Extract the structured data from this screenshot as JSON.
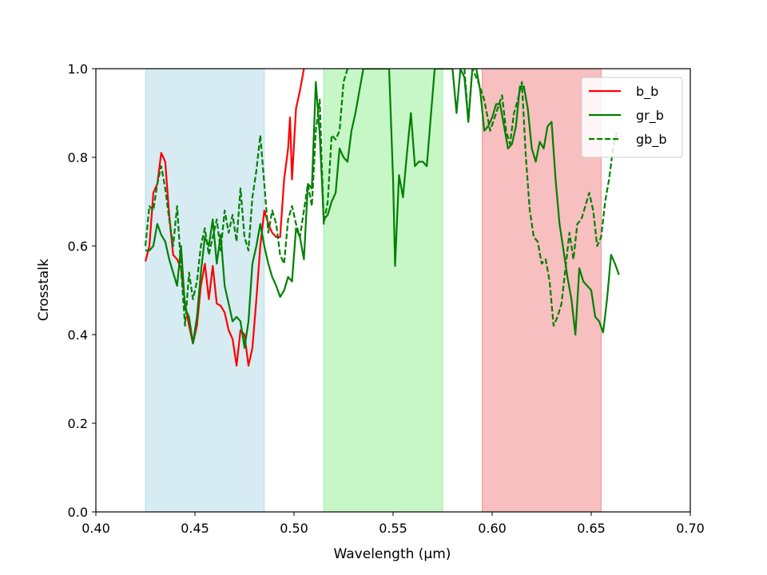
{
  "chart_data": {
    "type": "line",
    "title": "",
    "xlabel": "Wavelength (µm)",
    "ylabel": "Crosstalk",
    "xlim": [
      0.4,
      0.7
    ],
    "ylim": [
      0.0,
      1.0
    ],
    "xticks": [
      "0.40",
      "0.45",
      "0.50",
      "0.55",
      "0.60",
      "0.65",
      "0.70"
    ],
    "xtick_values": [
      0.4,
      0.45,
      0.5,
      0.55,
      0.6,
      0.65,
      0.7
    ],
    "yticks": [
      "0.0",
      "0.2",
      "0.4",
      "0.6",
      "0.8",
      "1.0"
    ],
    "ytick_values": [
      0.0,
      0.2,
      0.4,
      0.6,
      0.8,
      1.0
    ],
    "grid": false,
    "legend_position": "top-right",
    "bands": [
      {
        "x0": 0.425,
        "x1": 0.485,
        "color": "#add8e6"
      },
      {
        "x0": 0.515,
        "x1": 0.575,
        "color": "#90ee90"
      },
      {
        "x0": 0.595,
        "x1": 0.655,
        "color": "#f08080"
      }
    ],
    "series": [
      {
        "name": "b_b",
        "color": "#ff0000",
        "dash": "solid",
        "points": [
          [
            0.425,
            0.565
          ],
          [
            0.427,
            0.6
          ],
          [
            0.429,
            0.72
          ],
          [
            0.431,
            0.74
          ],
          [
            0.433,
            0.81
          ],
          [
            0.435,
            0.79
          ],
          [
            0.437,
            0.67
          ],
          [
            0.439,
            0.58
          ],
          [
            0.441,
            0.57
          ],
          [
            0.443,
            0.55
          ],
          [
            0.445,
            0.47
          ],
          [
            0.447,
            0.42
          ],
          [
            0.449,
            0.38
          ],
          [
            0.451,
            0.42
          ],
          [
            0.453,
            0.51
          ],
          [
            0.455,
            0.56
          ],
          [
            0.457,
            0.48
          ],
          [
            0.459,
            0.555
          ],
          [
            0.461,
            0.47
          ],
          [
            0.463,
            0.465
          ],
          [
            0.465,
            0.45
          ],
          [
            0.467,
            0.41
          ],
          [
            0.469,
            0.39
          ],
          [
            0.471,
            0.33
          ],
          [
            0.473,
            0.41
          ],
          [
            0.475,
            0.4
          ],
          [
            0.477,
            0.33
          ],
          [
            0.479,
            0.37
          ],
          [
            0.481,
            0.48
          ],
          [
            0.483,
            0.6
          ],
          [
            0.485,
            0.68
          ],
          [
            0.487,
            0.65
          ],
          [
            0.489,
            0.63
          ],
          [
            0.491,
            0.62
          ],
          [
            0.493,
            0.62
          ],
          [
            0.495,
            0.75
          ],
          [
            0.497,
            0.82
          ],
          [
            0.498,
            0.89
          ],
          [
            0.499,
            0.75
          ],
          [
            0.501,
            0.91
          ],
          [
            0.503,
            0.95
          ],
          [
            0.505,
            1.0
          ]
        ]
      },
      {
        "name": "gr_b",
        "color": "#008000",
        "dash": "solid",
        "points": [
          [
            0.425,
            0.59
          ],
          [
            0.427,
            0.59
          ],
          [
            0.429,
            0.6
          ],
          [
            0.431,
            0.65
          ],
          [
            0.433,
            0.625
          ],
          [
            0.435,
            0.61
          ],
          [
            0.437,
            0.57
          ],
          [
            0.439,
            0.54
          ],
          [
            0.441,
            0.51
          ],
          [
            0.443,
            0.6
          ],
          [
            0.445,
            0.46
          ],
          [
            0.447,
            0.44
          ],
          [
            0.449,
            0.38
          ],
          [
            0.451,
            0.44
          ],
          [
            0.453,
            0.54
          ],
          [
            0.455,
            0.62
          ],
          [
            0.457,
            0.6
          ],
          [
            0.459,
            0.66
          ],
          [
            0.461,
            0.56
          ],
          [
            0.463,
            0.625
          ],
          [
            0.465,
            0.51
          ],
          [
            0.467,
            0.47
          ],
          [
            0.469,
            0.43
          ],
          [
            0.471,
            0.44
          ],
          [
            0.473,
            0.43
          ],
          [
            0.475,
            0.37
          ],
          [
            0.477,
            0.43
          ],
          [
            0.479,
            0.56
          ],
          [
            0.481,
            0.6
          ],
          [
            0.483,
            0.65
          ],
          [
            0.485,
            0.6
          ],
          [
            0.487,
            0.56
          ],
          [
            0.489,
            0.53
          ],
          [
            0.491,
            0.51
          ],
          [
            0.493,
            0.485
          ],
          [
            0.495,
            0.5
          ],
          [
            0.497,
            0.53
          ],
          [
            0.499,
            0.52
          ],
          [
            0.501,
            0.64
          ],
          [
            0.503,
            0.62
          ],
          [
            0.505,
            0.57
          ],
          [
            0.507,
            0.74
          ],
          [
            0.509,
            0.73
          ],
          [
            0.511,
            0.97
          ],
          [
            0.513,
            0.85
          ],
          [
            0.515,
            0.66
          ],
          [
            0.517,
            0.67
          ],
          [
            0.519,
            0.7
          ],
          [
            0.521,
            0.72
          ],
          [
            0.523,
            0.82
          ],
          [
            0.525,
            0.8
          ],
          [
            0.527,
            0.79
          ],
          [
            0.529,
            0.86
          ],
          [
            0.531,
            0.9
          ],
          [
            0.533,
            0.95
          ],
          [
            0.535,
            1.0
          ],
          [
            0.548,
            1.0
          ],
          [
            0.55,
            0.75
          ],
          [
            0.551,
            0.555
          ],
          [
            0.553,
            0.76
          ],
          [
            0.555,
            0.71
          ],
          [
            0.557,
            0.81
          ],
          [
            0.559,
            0.9
          ],
          [
            0.561,
            0.78
          ],
          [
            0.563,
            0.79
          ],
          [
            0.565,
            0.79
          ],
          [
            0.567,
            0.78
          ],
          [
            0.569,
            0.89
          ],
          [
            0.571,
            1.0
          ],
          [
            0.58,
            1.0
          ],
          [
            0.582,
            0.9
          ],
          [
            0.584,
            1.0
          ],
          [
            0.586,
            0.98
          ],
          [
            0.588,
            0.88
          ],
          [
            0.59,
            1.0
          ],
          [
            0.592,
            1.0
          ],
          [
            0.594,
            0.95
          ],
          [
            0.596,
            0.86
          ],
          [
            0.598,
            0.87
          ],
          [
            0.6,
            0.89
          ],
          [
            0.602,
            0.92
          ],
          [
            0.604,
            0.92
          ],
          [
            0.606,
            0.87
          ],
          [
            0.608,
            0.82
          ],
          [
            0.61,
            0.83
          ],
          [
            0.612,
            0.87
          ],
          [
            0.614,
            0.96
          ],
          [
            0.616,
            0.96
          ],
          [
            0.618,
            0.91
          ],
          [
            0.62,
            0.82
          ],
          [
            0.622,
            0.79
          ],
          [
            0.624,
            0.835
          ],
          [
            0.626,
            0.82
          ],
          [
            0.628,
            0.87
          ],
          [
            0.63,
            0.88
          ],
          [
            0.632,
            0.75
          ],
          [
            0.634,
            0.65
          ],
          [
            0.636,
            0.59
          ],
          [
            0.638,
            0.53
          ],
          [
            0.64,
            0.48
          ],
          [
            0.642,
            0.4
          ],
          [
            0.644,
            0.55
          ],
          [
            0.646,
            0.52
          ],
          [
            0.648,
            0.51
          ],
          [
            0.65,
            0.5
          ],
          [
            0.652,
            0.44
          ],
          [
            0.654,
            0.43
          ],
          [
            0.656,
            0.405
          ],
          [
            0.658,
            0.48
          ],
          [
            0.66,
            0.58
          ],
          [
            0.662,
            0.56
          ],
          [
            0.664,
            0.535
          ]
        ]
      },
      {
        "name": "gb_b",
        "color": "#008000",
        "dash": "dashed",
        "points": [
          [
            0.425,
            0.6
          ],
          [
            0.427,
            0.69
          ],
          [
            0.429,
            0.68
          ],
          [
            0.431,
            0.74
          ],
          [
            0.433,
            0.78
          ],
          [
            0.435,
            0.73
          ],
          [
            0.437,
            0.66
          ],
          [
            0.439,
            0.6
          ],
          [
            0.441,
            0.69
          ],
          [
            0.443,
            0.55
          ],
          [
            0.445,
            0.42
          ],
          [
            0.447,
            0.54
          ],
          [
            0.449,
            0.48
          ],
          [
            0.451,
            0.52
          ],
          [
            0.453,
            0.6
          ],
          [
            0.455,
            0.64
          ],
          [
            0.457,
            0.58
          ],
          [
            0.459,
            0.62
          ],
          [
            0.461,
            0.66
          ],
          [
            0.463,
            0.59
          ],
          [
            0.465,
            0.68
          ],
          [
            0.467,
            0.63
          ],
          [
            0.469,
            0.67
          ],
          [
            0.471,
            0.61
          ],
          [
            0.473,
            0.73
          ],
          [
            0.475,
            0.62
          ],
          [
            0.477,
            0.59
          ],
          [
            0.479,
            0.71
          ],
          [
            0.481,
            0.77
          ],
          [
            0.483,
            0.85
          ],
          [
            0.485,
            0.74
          ],
          [
            0.487,
            0.63
          ],
          [
            0.489,
            0.68
          ],
          [
            0.491,
            0.65
          ],
          [
            0.493,
            0.58
          ],
          [
            0.495,
            0.56
          ],
          [
            0.497,
            0.66
          ],
          [
            0.499,
            0.69
          ],
          [
            0.501,
            0.65
          ],
          [
            0.503,
            0.62
          ],
          [
            0.505,
            0.68
          ],
          [
            0.507,
            0.74
          ],
          [
            0.509,
            0.69
          ],
          [
            0.511,
            0.86
          ],
          [
            0.513,
            0.93
          ],
          [
            0.515,
            0.65
          ],
          [
            0.517,
            0.7
          ],
          [
            0.519,
            0.85
          ],
          [
            0.521,
            0.84
          ],
          [
            0.523,
            0.86
          ],
          [
            0.525,
            0.97
          ],
          [
            0.527,
            1.0
          ]
        ]
      },
      {
        "name": "gb_b",
        "color": "#008000",
        "dash": "dashed",
        "points": [
          [
            0.586,
            1.0
          ],
          [
            0.588,
            0.88
          ],
          [
            0.59,
            1.0
          ],
          [
            0.593,
            0.97
          ],
          [
            0.596,
            0.93
          ],
          [
            0.599,
            0.86
          ],
          [
            0.602,
            0.9
          ],
          [
            0.605,
            0.94
          ],
          [
            0.607,
            0.86
          ],
          [
            0.609,
            0.83
          ],
          [
            0.611,
            0.9
          ],
          [
            0.613,
            0.93
          ],
          [
            0.615,
            0.97
          ],
          [
            0.617,
            0.8
          ],
          [
            0.619,
            0.68
          ],
          [
            0.621,
            0.62
          ],
          [
            0.623,
            0.61
          ],
          [
            0.625,
            0.56
          ],
          [
            0.627,
            0.57
          ],
          [
            0.629,
            0.52
          ],
          [
            0.631,
            0.42
          ],
          [
            0.633,
            0.44
          ],
          [
            0.635,
            0.47
          ],
          [
            0.637,
            0.55
          ],
          [
            0.639,
            0.63
          ],
          [
            0.641,
            0.57
          ],
          [
            0.643,
            0.65
          ],
          [
            0.645,
            0.66
          ],
          [
            0.647,
            0.69
          ],
          [
            0.649,
            0.72
          ],
          [
            0.651,
            0.68
          ],
          [
            0.653,
            0.6
          ],
          [
            0.655,
            0.62
          ],
          [
            0.657,
            0.7
          ],
          [
            0.659,
            0.75
          ],
          [
            0.661,
            0.82
          ],
          [
            0.663,
            0.86
          ]
        ]
      }
    ]
  }
}
